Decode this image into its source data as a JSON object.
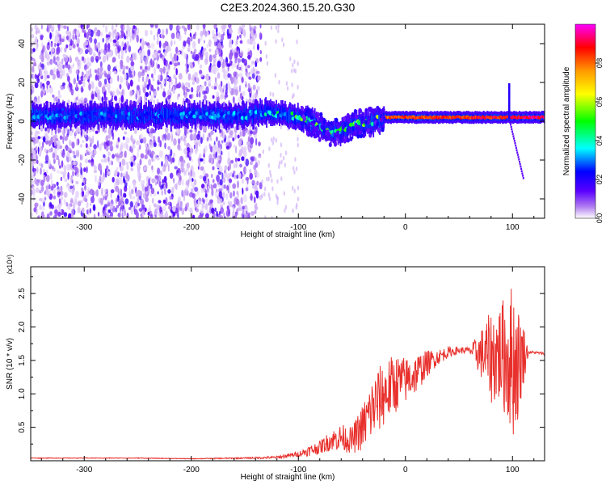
{
  "title": "C2E3.2024.360.15.20.G30",
  "chart_data": [
    {
      "type": "heatmap",
      "xlabel": "Height of straight line (km)",
      "ylabel": "Frequency (Hz)",
      "xlim": [
        -350,
        130
      ],
      "ylim": [
        -50,
        50
      ],
      "xticks": [
        -300,
        -200,
        -100,
        0,
        100
      ],
      "yticks": [
        -40,
        -20,
        0,
        20,
        40
      ],
      "colorbar": {
        "label": "Normalized spectral amplitude",
        "range": [
          0,
          1
        ],
        "ticks": [
          "0.0",
          "0.2",
          "0.4",
          "0.6",
          "0.8"
        ],
        "colors": [
          "#ffffff",
          "#b07cf0",
          "#5a00ff",
          "#0000ff",
          "#00ffff",
          "#00ff00",
          "#ffff00",
          "#ff9900",
          "#ff0000",
          "#ff00ff"
        ]
      },
      "ridge": {
        "x": [
          -350,
          -300,
          -250,
          -200,
          -150,
          -130,
          -110,
          -100,
          -90,
          -80,
          -70,
          -60,
          -50,
          -40,
          -30,
          -20,
          -10,
          0,
          20,
          50,
          80,
          100,
          120,
          130
        ],
        "freq": [
          3,
          3,
          3,
          3,
          3,
          5,
          3,
          2,
          0,
          -3,
          -6,
          -5,
          -2,
          -1,
          0,
          2,
          2,
          2,
          2,
          2,
          2,
          2,
          2,
          2
        ],
        "amplitude": [
          0.3,
          0.3,
          0.3,
          0.3,
          0.35,
          0.4,
          0.45,
          0.5,
          0.5,
          0.5,
          0.5,
          0.5,
          0.55,
          0.6,
          0.7,
          0.8,
          0.85,
          0.85,
          0.85,
          0.88,
          0.9,
          0.9,
          0.95,
          0.95
        ]
      },
      "noise_region": [
        -350,
        -135
      ],
      "spike": {
        "x": 97,
        "freq_top": 20,
        "tail_x": 110,
        "tail_freq": -30
      }
    },
    {
      "type": "line",
      "xlabel": "Height of straight line (km)",
      "ylabel": "SNR (10 * v/v)",
      "y_multiplier": "(x10⁴)",
      "xlim": [
        -350,
        130
      ],
      "ylim": [
        0,
        2.9
      ],
      "xticks": [
        -300,
        -200,
        -100,
        0,
        100
      ],
      "yticks": [
        "0.5",
        "1.0",
        "1.5",
        "2.0",
        "2.5"
      ],
      "color": "#e8302c",
      "series": [
        {
          "x": [
            -350,
            -300,
            -250,
            -200,
            -150,
            -120,
            -100,
            -90,
            -80,
            -70,
            -60,
            -50,
            -40,
            -30,
            -20,
            -10,
            0,
            10,
            20,
            30,
            40,
            50,
            60,
            70,
            80,
            90,
            100,
            105,
            110,
            115,
            120,
            130
          ],
          "values": [
            0.04,
            0.04,
            0.04,
            0.03,
            0.04,
            0.05,
            0.1,
            0.15,
            0.2,
            0.3,
            0.35,
            0.3,
            0.5,
            0.8,
            1.0,
            1.15,
            1.2,
            1.3,
            1.45,
            1.55,
            1.62,
            1.65,
            1.65,
            1.6,
            1.55,
            1.6,
            1.5,
            1.45,
            1.6,
            1.62,
            1.62,
            1.6
          ],
          "noise_amplitude": [
            0.005,
            0.005,
            0.005,
            0.005,
            0.01,
            0.02,
            0.04,
            0.08,
            0.1,
            0.15,
            0.2,
            0.2,
            0.35,
            0.5,
            0.5,
            0.45,
            0.35,
            0.3,
            0.2,
            0.12,
            0.08,
            0.05,
            0.05,
            0.35,
            0.7,
            0.8,
            1.2,
            0.9,
            0.5,
            0.02,
            0.02,
            0.02
          ]
        }
      ]
    }
  ]
}
